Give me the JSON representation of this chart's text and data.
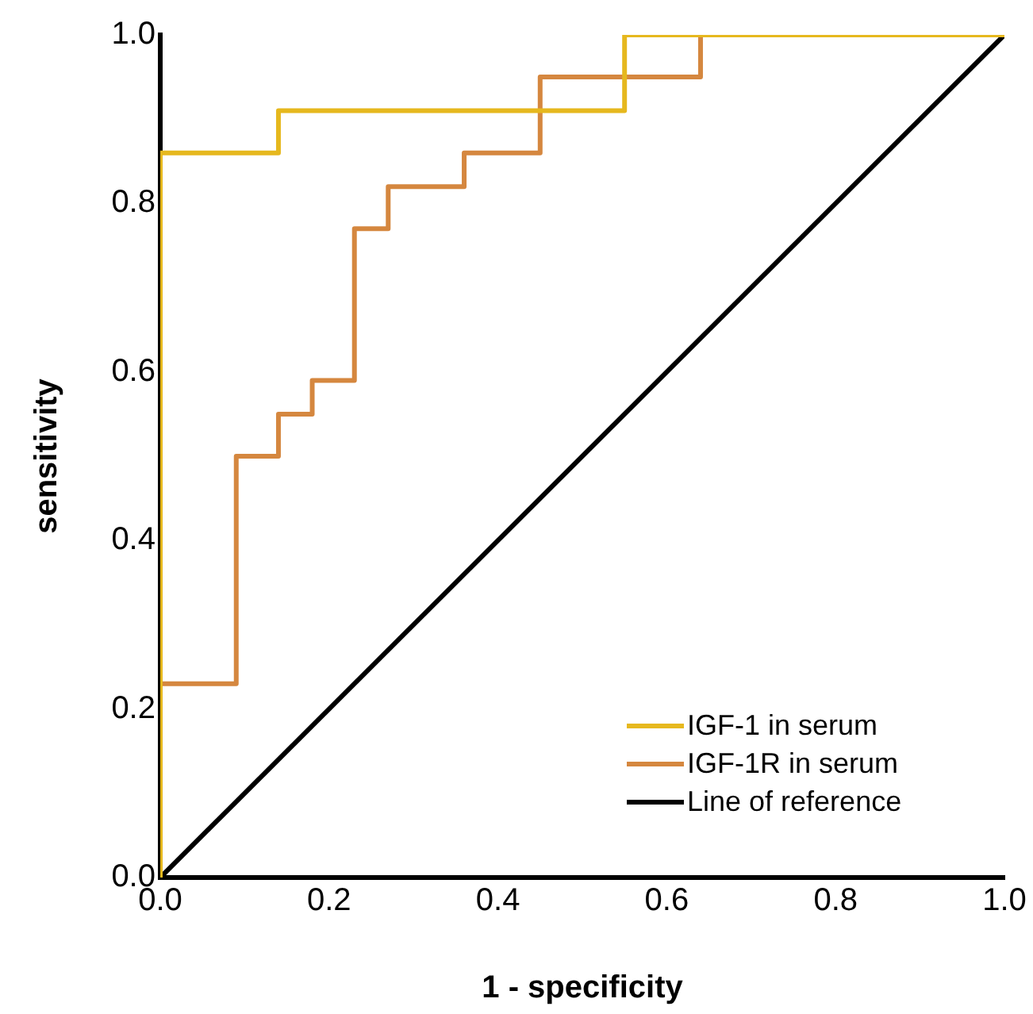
{
  "chart_data": {
    "type": "line",
    "xlabel": "1 - specificity",
    "ylabel": "sensitivity",
    "xlim": [
      0,
      1
    ],
    "ylim": [
      0,
      1
    ],
    "xticks": [
      {
        "value": 0,
        "label": "0.0"
      },
      0.2,
      0.4,
      0.6,
      0.8,
      {
        "value": 1,
        "label": "1.0"
      }
    ],
    "yticks": [
      {
        "value": 0,
        "label": "0.0"
      },
      0.2,
      0.4,
      0.6,
      0.8,
      {
        "value": 1,
        "label": "1.0"
      }
    ],
    "grid": false,
    "legend": "bottom right",
    "marker": "none",
    "line_style": "solid",
    "series": [
      {
        "name": "IGF-1 in serum",
        "color": "#e6b81e",
        "x": [
          0,
          0,
          0.14,
          0.14,
          0.55,
          0.55,
          1
        ],
        "values": [
          0,
          0.86,
          0.86,
          0.91,
          0.91,
          1,
          1
        ]
      },
      {
        "name": "IGF-1R in serum",
        "color": "#d5873f",
        "x": [
          0,
          0,
          0.09,
          0.09,
          0.14,
          0.14,
          0.18,
          0.18,
          0.23,
          0.23,
          0.27,
          0.27,
          0.36,
          0.36,
          0.45,
          0.45,
          0.64,
          0.64,
          1
        ],
        "values": [
          0,
          0.23,
          0.23,
          0.5,
          0.5,
          0.55,
          0.55,
          0.59,
          0.59,
          0.77,
          0.77,
          0.82,
          0.82,
          0.86,
          0.86,
          0.95,
          0.95,
          1,
          1
        ]
      },
      {
        "name": "Line of reference",
        "color": "#000000",
        "x": [
          0,
          1
        ],
        "values": [
          0,
          1
        ]
      }
    ]
  }
}
